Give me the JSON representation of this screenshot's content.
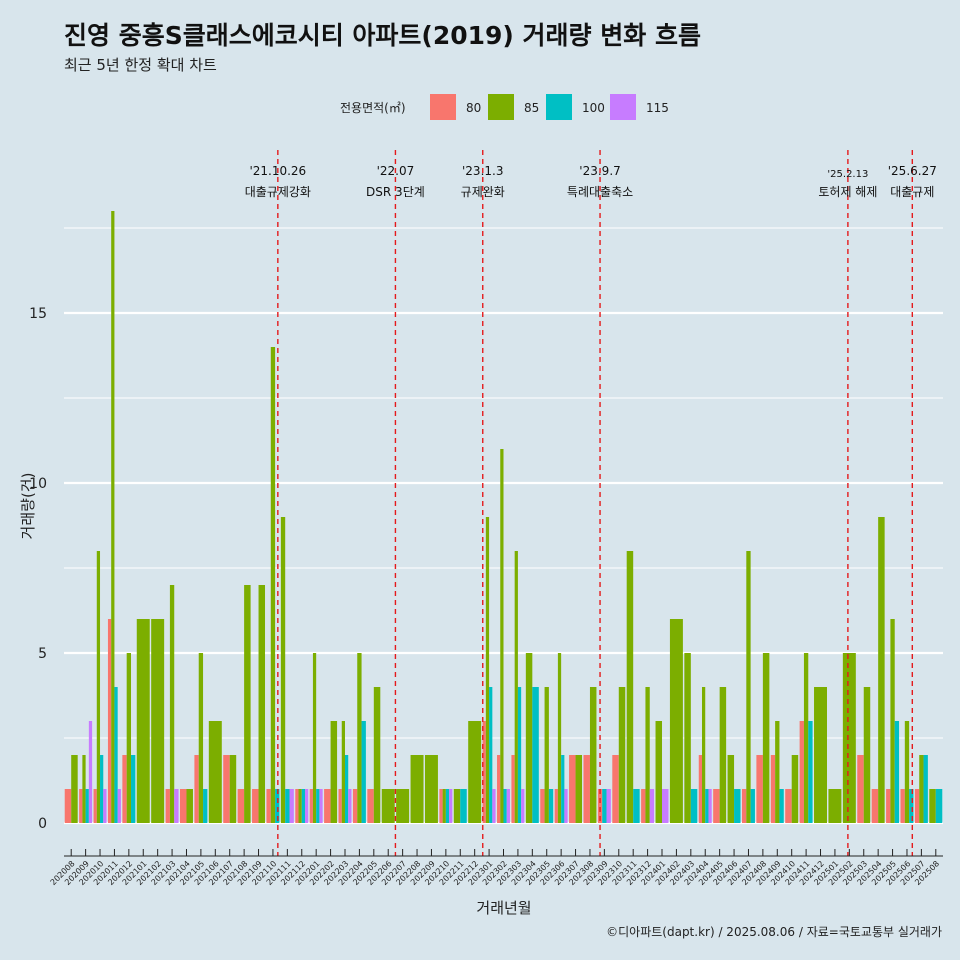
{
  "title": "진영 중흥S클래스에코시티 아파트(2019) 거래량 변화 흐름",
  "subtitle": "최근 5년 한정 확대 차트",
  "caption": "©디아파트(dapt.kr) / 2025.08.06 / 자료=국토교통부 실거래가",
  "colors": {
    "background": "#d8e5ec",
    "grid": "#ffffff",
    "event_line": "#e41a1c"
  },
  "chart_data": {
    "type": "bar",
    "xlabel": "거래년월",
    "ylabel": "거래량(건)",
    "ylim": [
      0,
      19
    ],
    "yticks": [
      0,
      5,
      10,
      15
    ],
    "legend": {
      "title": "전용면적(㎡)",
      "position": "top",
      "items": [
        {
          "name": "80",
          "color": "#f8766d"
        },
        {
          "name": "85",
          "color": "#7cae00"
        },
        {
          "name": "100",
          "color": "#00bfc4"
        },
        {
          "name": "115",
          "color": "#c77cff"
        }
      ]
    },
    "categories": [
      "202008",
      "202009",
      "202010",
      "202011",
      "202012",
      "202101",
      "202102",
      "202103",
      "202104",
      "202105",
      "202106",
      "202107",
      "202108",
      "202109",
      "202110",
      "202111",
      "202112",
      "202201",
      "202202",
      "202203",
      "202204",
      "202205",
      "202206",
      "202207",
      "202208",
      "202209",
      "202210",
      "202211",
      "202212",
      "202301",
      "202302",
      "202303",
      "202304",
      "202305",
      "202306",
      "202307",
      "202308",
      "202309",
      "202310",
      "202311",
      "202312",
      "202401",
      "202402",
      "202403",
      "202404",
      "202405",
      "202406",
      "202407",
      "202408",
      "202409",
      "202410",
      "202411",
      "202412",
      "202501",
      "202502",
      "202503",
      "202504",
      "202505",
      "202506",
      "202507",
      "202508"
    ],
    "series": [
      {
        "name": "80",
        "values": [
          1,
          1,
          1,
          6,
          2,
          0,
          0,
          1,
          1,
          2,
          0,
          2,
          1,
          1,
          1,
          0,
          1,
          1,
          1,
          1,
          1,
          1,
          0,
          0,
          0,
          0,
          1,
          0,
          0,
          3,
          2,
          2,
          0,
          1,
          1,
          2,
          2,
          1,
          2,
          0,
          1,
          0,
          0,
          0,
          2,
          1,
          0,
          1,
          2,
          2,
          1,
          3,
          0,
          0,
          0,
          2,
          1,
          1,
          1,
          1,
          0
        ]
      },
      {
        "name": "85",
        "values": [
          2,
          2,
          8,
          18,
          5,
          6,
          6,
          7,
          1,
          5,
          3,
          2,
          7,
          7,
          14,
          9,
          1,
          5,
          3,
          3,
          5,
          4,
          1,
          1,
          2,
          2,
          1,
          1,
          3,
          9,
          11,
          8,
          5,
          4,
          5,
          2,
          4,
          0,
          4,
          8,
          4,
          3,
          6,
          5,
          4,
          4,
          2,
          8,
          5,
          3,
          2,
          5,
          4,
          1,
          5,
          4,
          9,
          6,
          3,
          2,
          1
        ]
      },
      {
        "name": "100",
        "values": [
          0,
          1,
          2,
          4,
          2,
          0,
          0,
          0,
          0,
          1,
          0,
          0,
          0,
          0,
          1,
          1,
          1,
          1,
          0,
          2,
          3,
          0,
          0,
          0,
          0,
          0,
          1,
          1,
          0,
          4,
          1,
          4,
          4,
          1,
          2,
          0,
          0,
          1,
          0,
          1,
          0,
          0,
          0,
          1,
          1,
          0,
          1,
          1,
          0,
          1,
          0,
          3,
          0,
          0,
          0,
          0,
          0,
          3,
          1,
          2,
          1
        ]
      },
      {
        "name": "115",
        "values": [
          0,
          3,
          1,
          1,
          0,
          0,
          0,
          1,
          0,
          0,
          0,
          0,
          0,
          0,
          0,
          1,
          1,
          1,
          0,
          1,
          0,
          0,
          0,
          0,
          0,
          0,
          1,
          0,
          0,
          1,
          1,
          1,
          0,
          0,
          1,
          0,
          0,
          1,
          0,
          0,
          1,
          1,
          0,
          0,
          1,
          0,
          0,
          0,
          0,
          0,
          0,
          0,
          0,
          0,
          0,
          0,
          0,
          0,
          0,
          0,
          0
        ]
      }
    ],
    "events": [
      {
        "date": "'21.10.26",
        "label": "대출규제강화",
        "after_category": "202110",
        "fraction": 0.84
      },
      {
        "date": "'22.07",
        "label": "DSR 3단계",
        "after_category": "202207",
        "fraction": 0.0
      },
      {
        "date": "'23.1.3",
        "label": "규제완화",
        "after_category": "202301",
        "fraction": 0.06
      },
      {
        "date": "'23.9.7",
        "label": "특례대출축소",
        "after_category": "202309",
        "fraction": 0.2
      },
      {
        "date": "'25.2.13",
        "label": "토허제 해제",
        "after_category": "202502",
        "fraction": 0.4
      },
      {
        "date": "'25.6.27",
        "label": "대출규제",
        "after_category": "202506",
        "fraction": 0.87
      }
    ]
  }
}
